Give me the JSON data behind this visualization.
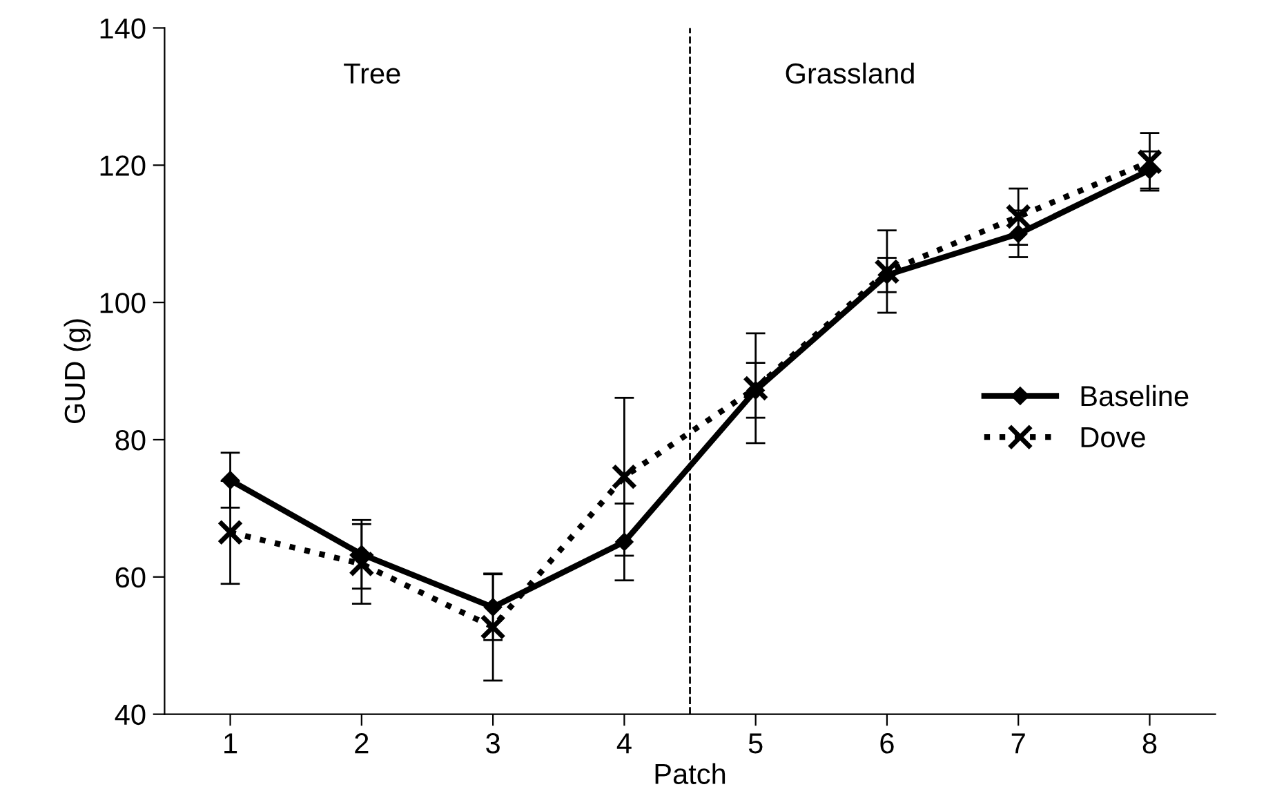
{
  "chart_data": {
    "type": "line",
    "xlabel": "Patch",
    "ylabel": "GUD (g)",
    "x": [
      1,
      2,
      3,
      4,
      5,
      6,
      7,
      8
    ],
    "xlim": [
      0.5,
      8.5
    ],
    "xticks": [
      1,
      2,
      3,
      4,
      5,
      6,
      7,
      8
    ],
    "ylim": [
      40,
      140
    ],
    "yticks": [
      40,
      60,
      80,
      100,
      120,
      140
    ],
    "grid": false,
    "legend": "right",
    "series": [
      {
        "name": "Baseline",
        "color": "#000000",
        "marker": "diamond",
        "line_style": "solid",
        "values": [
          74.1,
          63.3,
          55.6,
          65.1,
          87.2,
          104,
          110,
          119.3
        ],
        "errors": [
          4,
          5,
          4.8,
          5.6,
          4,
          2.5,
          3.4,
          2.7
        ]
      },
      {
        "name": "Dove",
        "color": "#000000",
        "marker": "cross",
        "line_style": "dotted",
        "values": [
          66.5,
          61.9,
          52.7,
          74.6,
          87.5,
          104.5,
          112.5,
          120.5
        ],
        "errors": [
          7.5,
          5.8,
          7.8,
          11.5,
          8,
          6,
          4.1,
          4.2
        ]
      }
    ],
    "ref_lines": [
      {
        "axis": "x",
        "value": 4.5,
        "color": "#000000",
        "line_style": "dashed"
      }
    ],
    "annotations": [
      "Tree",
      "Grassland"
    ]
  }
}
